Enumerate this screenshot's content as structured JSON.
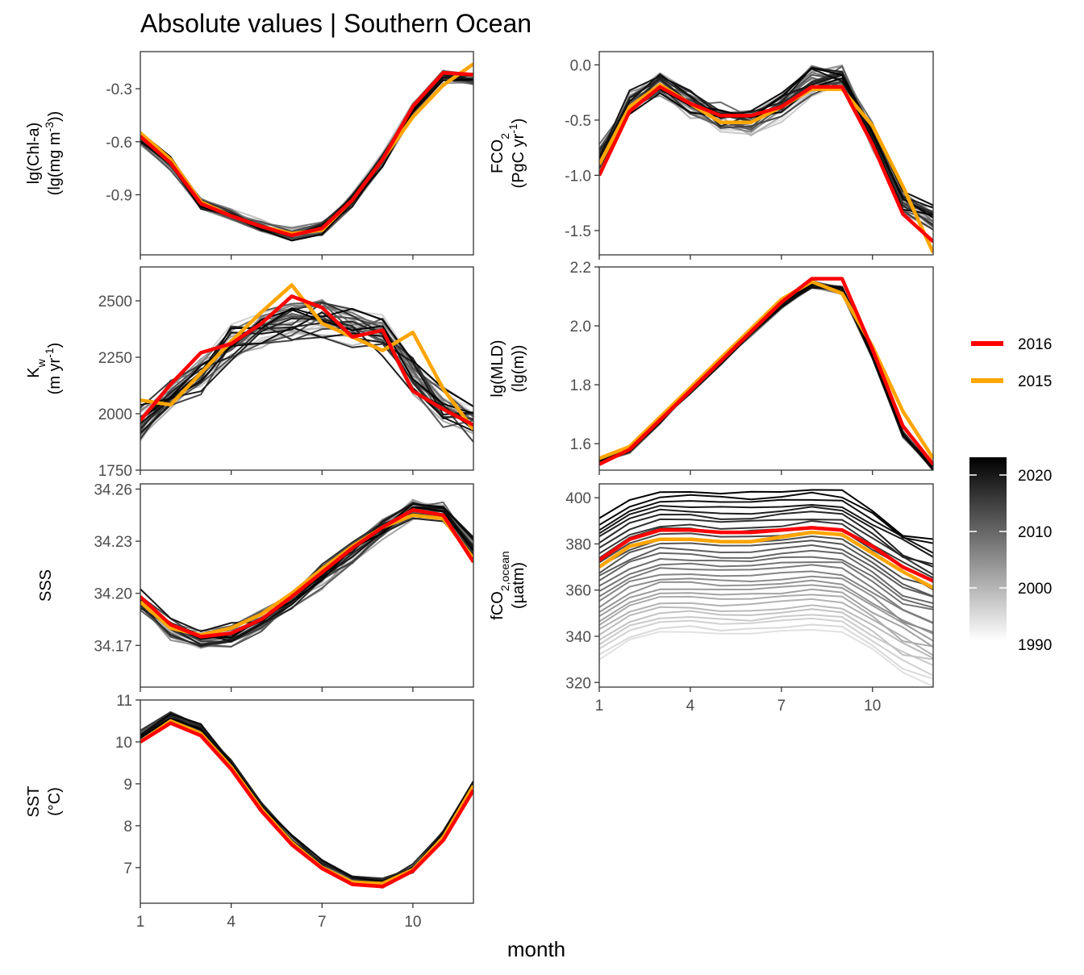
{
  "title": "Absolute values | Southern Ocean",
  "chart_data": {
    "type": "line",
    "title": "Absolute values | Southern Ocean",
    "xlabel": "month",
    "x": [
      1,
      2,
      3,
      4,
      5,
      6,
      7,
      8,
      9,
      10,
      11,
      12
    ],
    "x_ticks": [
      "1",
      "4",
      "7",
      "10"
    ],
    "legend": {
      "highlight": [
        {
          "name": "2016",
          "color": "#ff0000"
        },
        {
          "name": "2015",
          "color": "#ffa500"
        }
      ],
      "colorbar": {
        "labels": [
          "2020",
          "2010",
          "2000",
          "1990"
        ],
        "low_color": "#ffffff",
        "high_color": "#000000"
      }
    },
    "panels": [
      {
        "key": "chl",
        "ylabel_lines": [
          "lg(Chl-a)",
          "(lg(mg m-3))"
        ],
        "ylim": [
          -1.24,
          -0.09
        ],
        "yticks": [
          -0.9,
          -0.6,
          -0.3
        ],
        "ytick_labels": [
          "-0.9",
          "-0.6",
          "-0.3"
        ],
        "series": [
          {
            "name": "2016",
            "values": [
              -0.57,
              -0.72,
              -0.95,
              -1.02,
              -1.08,
              -1.13,
              -1.09,
              -0.93,
              -0.7,
              -0.4,
              -0.21,
              -0.22
            ]
          },
          {
            "name": "2015",
            "values": [
              -0.55,
              -0.7,
              -0.94,
              -1.02,
              -1.08,
              -1.12,
              -1.1,
              -0.93,
              -0.7,
              -0.46,
              -0.28,
              -0.16
            ]
          }
        ],
        "ensemble": {
          "base": [
            -0.58,
            -0.72,
            -0.95,
            -1.02,
            -1.08,
            -1.12,
            -1.09,
            -0.93,
            -0.7,
            -0.42,
            -0.23,
            -0.25
          ],
          "spread": 0.04
        }
      },
      {
        "key": "fco2",
        "ylabel_lines": [
          "FCO2",
          "(PgC yr-1)"
        ],
        "ylim": [
          -1.72,
          0.12
        ],
        "yticks": [
          -1.5,
          -1.0,
          -0.5,
          0.0
        ],
        "ytick_labels": [
          "-1.5",
          "-1.0",
          "-0.5",
          "0.0"
        ],
        "series": [
          {
            "name": "2016",
            "values": [
              -1.0,
              -0.42,
              -0.2,
              -0.35,
              -0.46,
              -0.46,
              -0.38,
              -0.2,
              -0.2,
              -0.72,
              -1.35,
              -1.6
            ]
          },
          {
            "name": "2015",
            "values": [
              -0.9,
              -0.38,
              -0.18,
              -0.35,
              -0.52,
              -0.52,
              -0.38,
              -0.22,
              -0.22,
              -0.55,
              -1.1,
              -1.7
            ]
          }
        ],
        "ensemble": {
          "base": [
            -0.85,
            -0.35,
            -0.2,
            -0.35,
            -0.48,
            -0.52,
            -0.38,
            -0.15,
            -0.12,
            -0.65,
            -1.25,
            -1.4
          ],
          "spread": 0.14
        }
      },
      {
        "key": "kw",
        "ylabel_lines": [
          "Kw",
          "(m yr-1)"
        ],
        "ylim": [
          1750,
          2650
        ],
        "yticks": [
          1750,
          2000,
          2250,
          2500
        ],
        "ytick_labels": [
          "1750",
          "2000",
          "2250",
          "2500"
        ],
        "series": [
          {
            "name": "2016",
            "values": [
              1970,
              2130,
              2270,
              2310,
              2400,
              2520,
              2470,
              2340,
              2370,
              2100,
              2020,
              1950
            ]
          },
          {
            "name": "2015",
            "values": [
              2060,
              2040,
              2180,
              2320,
              2450,
              2570,
              2400,
              2340,
              2280,
              2360,
              2110,
              1930
            ]
          }
        ],
        "ensemble": {
          "base": [
            1950,
            2070,
            2180,
            2310,
            2380,
            2410,
            2420,
            2380,
            2350,
            2170,
            2030,
            1960
          ],
          "spread": 90
        }
      },
      {
        "key": "mld",
        "ylabel_lines": [
          "lg(MLD)",
          "(lg(m))"
        ],
        "ylim": [
          1.51,
          2.2
        ],
        "yticks": [
          1.6,
          1.8,
          2.0,
          2.2
        ],
        "ytick_labels": [
          "1.6",
          "1.8",
          "2.0",
          "2.2"
        ],
        "series": [
          {
            "name": "2016",
            "values": [
              1.53,
              1.58,
              1.68,
              1.78,
              1.88,
              1.98,
              2.08,
              2.16,
              2.16,
              1.92,
              1.66,
              1.53
            ]
          },
          {
            "name": "2015",
            "values": [
              1.55,
              1.59,
              1.69,
              1.79,
              1.89,
              1.99,
              2.09,
              2.15,
              2.11,
              1.93,
              1.71,
              1.55
            ]
          }
        ],
        "ensemble": {
          "base": [
            1.54,
            1.58,
            1.68,
            1.78,
            1.88,
            1.98,
            2.07,
            2.14,
            2.12,
            1.9,
            1.63,
            1.52
          ],
          "spread": 0.015
        }
      },
      {
        "key": "sss",
        "ylabel_lines": [
          "SSS"
        ],
        "ylim": [
          34.146,
          34.263
        ],
        "yticks": [
          34.17,
          34.2,
          34.23,
          34.26
        ],
        "ytick_labels": [
          "34.17",
          "34.20",
          "34.23",
          "34.26"
        ],
        "series": [
          {
            "name": "2016",
            "values": [
              34.198,
              34.182,
              34.175,
              34.177,
              34.185,
              34.198,
              34.212,
              34.226,
              34.238,
              34.248,
              34.245,
              34.218
            ]
          },
          {
            "name": "2015",
            "values": [
              34.195,
              34.18,
              34.176,
              34.18,
              34.188,
              34.2,
              34.214,
              34.227,
              34.238,
              34.245,
              34.243,
              34.22
            ]
          }
        ],
        "ensemble": {
          "base": [
            34.196,
            34.18,
            34.174,
            34.176,
            34.184,
            34.196,
            34.21,
            34.224,
            34.237,
            34.249,
            34.248,
            34.225
          ],
          "spread": 0.007
        }
      },
      {
        "key": "fco2ocean",
        "ylabel_lines": [
          "fCO2,ocean",
          "(µatm)"
        ],
        "ylim": [
          318,
          406
        ],
        "yticks": [
          320,
          340,
          360,
          380,
          400
        ],
        "ytick_labels": [
          "320",
          "340",
          "360",
          "380",
          "400"
        ],
        "series": [
          {
            "name": "2016",
            "values": [
              373,
              382,
              386,
              386,
              385,
              385,
              386,
              387,
              386,
              379,
              370,
              364
            ]
          },
          {
            "name": "2015",
            "values": [
              370,
              379,
              382,
              382,
              381,
              381,
              383,
              385,
              384,
              376,
              368,
              361
            ]
          }
        ],
        "ensemble": {
          "base": [
            330,
            338,
            342,
            342,
            341,
            341,
            342,
            343,
            342,
            334,
            325,
            320
          ],
          "step": 2.1
        }
      },
      {
        "key": "sst",
        "ylabel_lines": [
          "SST",
          "(°C)"
        ],
        "ylim": [
          6.15,
          11.0
        ],
        "yticks": [
          7,
          8,
          9,
          10,
          11
        ],
        "ytick_labels": [
          "7",
          "8",
          "9",
          "10",
          "11"
        ],
        "series": [
          {
            "name": "2016",
            "values": [
              10.0,
              10.45,
              10.15,
              9.35,
              8.35,
              7.55,
              6.98,
              6.6,
              6.55,
              6.92,
              7.65,
              8.85
            ]
          },
          {
            "name": "2015",
            "values": [
              10.0,
              10.5,
              10.2,
              9.4,
              8.4,
              7.6,
              7.0,
              6.65,
              6.62,
              6.95,
              7.72,
              8.95
            ]
          }
        ],
        "ensemble": {
          "base": [
            10.15,
            10.6,
            10.3,
            9.45,
            8.45,
            7.65,
            7.05,
            6.68,
            6.62,
            6.98,
            7.75,
            8.95
          ],
          "spread": 0.12
        }
      }
    ]
  }
}
